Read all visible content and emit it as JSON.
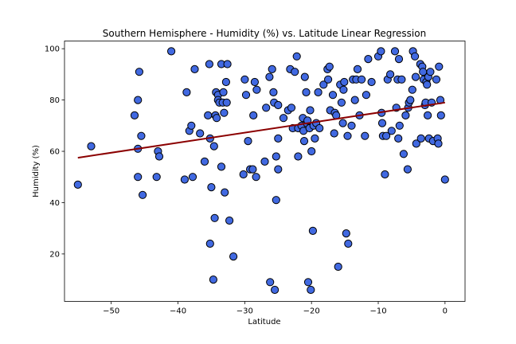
{
  "chart_data": {
    "type": "scatter",
    "title": "Southern Hemisphere - Humidity (%) vs. Latitude Linear Regression",
    "xlabel": "Latitude",
    "ylabel": "Humidity (%)",
    "xlim": [
      -57,
      3
    ],
    "ylim": [
      1.5,
      103
    ],
    "xticks": [
      -50,
      -40,
      -30,
      -20,
      -10,
      0
    ],
    "yticks": [
      20,
      40,
      60,
      80,
      100
    ],
    "xtick_labels": [
      "−50",
      "−40",
      "−30",
      "−20",
      "−10",
      "0"
    ],
    "ytick_labels": [
      "20",
      "40",
      "60",
      "80",
      "100"
    ],
    "grid": false,
    "marker_color": "#4169e1",
    "marker_edge": "#000000",
    "line_color": "#8b0000",
    "regression_line": {
      "x": [
        -55,
        0
      ],
      "y": [
        57.5,
        79
      ]
    },
    "points": [
      [
        -55,
        47
      ],
      [
        -53,
        62
      ],
      [
        -46.5,
        74
      ],
      [
        -46,
        80
      ],
      [
        -46,
        61
      ],
      [
        -46,
        50
      ],
      [
        -45.8,
        91
      ],
      [
        -45.5,
        66
      ],
      [
        -45.3,
        43
      ],
      [
        -43.2,
        50
      ],
      [
        -43,
        60
      ],
      [
        -42.8,
        58
      ],
      [
        -41,
        99
      ],
      [
        -39,
        49
      ],
      [
        -38.7,
        83
      ],
      [
        -38.3,
        68
      ],
      [
        -38,
        70
      ],
      [
        -37.8,
        50
      ],
      [
        -37.5,
        92
      ],
      [
        -36.7,
        67
      ],
      [
        -36,
        56
      ],
      [
        -35.5,
        74
      ],
      [
        -35.3,
        94
      ],
      [
        -35.2,
        65
      ],
      [
        -35.2,
        24
      ],
      [
        -35,
        46
      ],
      [
        -34.7,
        10
      ],
      [
        -34.6,
        62
      ],
      [
        -34.5,
        34
      ],
      [
        -34.4,
        74
      ],
      [
        -34.3,
        83
      ],
      [
        -34.2,
        73
      ],
      [
        -34,
        82
      ],
      [
        -34,
        80
      ],
      [
        -33.8,
        79
      ],
      [
        -33.5,
        94
      ],
      [
        -33.5,
        54
      ],
      [
        -33.3,
        79
      ],
      [
        -33.2,
        83
      ],
      [
        -33.1,
        75
      ],
      [
        -33,
        44
      ],
      [
        -32.8,
        87
      ],
      [
        -32.7,
        79
      ],
      [
        -32.6,
        94
      ],
      [
        -32.3,
        33
      ],
      [
        -31.7,
        19
      ],
      [
        -30.2,
        51
      ],
      [
        -30,
        88
      ],
      [
        -29.8,
        82
      ],
      [
        -29.5,
        64
      ],
      [
        -29.2,
        53
      ],
      [
        -28.8,
        53
      ],
      [
        -28.7,
        74
      ],
      [
        -28.5,
        87
      ],
      [
        -28.3,
        50
      ],
      [
        -28.2,
        84
      ],
      [
        -27,
        56
      ],
      [
        -26.8,
        77
      ],
      [
        -26.3,
        89
      ],
      [
        -26.2,
        9
      ],
      [
        -25.9,
        92
      ],
      [
        -25.7,
        83
      ],
      [
        -25.6,
        79
      ],
      [
        -25.5,
        6
      ],
      [
        -25.3,
        58
      ],
      [
        -25.3,
        41
      ],
      [
        -25,
        78
      ],
      [
        -25,
        53
      ],
      [
        -25,
        65
      ],
      [
        -24.2,
        73
      ],
      [
        -23.5,
        76
      ],
      [
        -23.2,
        92
      ],
      [
        -23,
        77
      ],
      [
        -22.8,
        69
      ],
      [
        -22.5,
        91
      ],
      [
        -22.2,
        97
      ],
      [
        -22,
        69
      ],
      [
        -22,
        58
      ],
      [
        -21.5,
        70
      ],
      [
        -21.3,
        73
      ],
      [
        -21.2,
        68
      ],
      [
        -21.1,
        64
      ],
      [
        -21,
        89
      ],
      [
        -20.8,
        83
      ],
      [
        -20.7,
        71
      ],
      [
        -20.6,
        72
      ],
      [
        -20.5,
        9
      ],
      [
        -20.3,
        69
      ],
      [
        -20.2,
        76
      ],
      [
        -20.1,
        6
      ],
      [
        -20,
        60
      ],
      [
        -19.8,
        29
      ],
      [
        -19.7,
        70
      ],
      [
        -19.5,
        65
      ],
      [
        -19.3,
        71
      ],
      [
        -19,
        83
      ],
      [
        -18.8,
        69
      ],
      [
        -18.2,
        86
      ],
      [
        -17.6,
        92
      ],
      [
        -17.5,
        88
      ],
      [
        -17.3,
        93
      ],
      [
        -17.2,
        76
      ],
      [
        -16.8,
        82
      ],
      [
        -16.6,
        67
      ],
      [
        -16.5,
        75
      ],
      [
        -16.3,
        74
      ],
      [
        -16,
        15
      ],
      [
        -15.7,
        86
      ],
      [
        -15.5,
        79
      ],
      [
        -15.3,
        71
      ],
      [
        -15.2,
        84
      ],
      [
        -15.1,
        87
      ],
      [
        -14.8,
        28
      ],
      [
        -14.6,
        66
      ],
      [
        -14.5,
        24
      ],
      [
        -14,
        70
      ],
      [
        -13.8,
        88
      ],
      [
        -13.5,
        80
      ],
      [
        -13.3,
        88
      ],
      [
        -13.1,
        92
      ],
      [
        -12.8,
        74
      ],
      [
        -12.5,
        88
      ],
      [
        -12,
        66
      ],
      [
        -11.8,
        82
      ],
      [
        -11.5,
        96
      ],
      [
        -11,
        87
      ],
      [
        -10,
        97
      ],
      [
        -9.6,
        99
      ],
      [
        -9.5,
        75
      ],
      [
        -9.4,
        71
      ],
      [
        -9.3,
        66
      ],
      [
        -9,
        51
      ],
      [
        -8.8,
        66
      ],
      [
        -8.6,
        88
      ],
      [
        -8.2,
        90
      ],
      [
        -8,
        68
      ],
      [
        -7.5,
        99
      ],
      [
        -7.3,
        77
      ],
      [
        -7.1,
        88
      ],
      [
        -7,
        65
      ],
      [
        -6.9,
        96
      ],
      [
        -6.8,
        70
      ],
      [
        -6.5,
        88
      ],
      [
        -6.2,
        59
      ],
      [
        -5.9,
        74
      ],
      [
        -5.6,
        53
      ],
      [
        -5.5,
        77
      ],
      [
        -5.4,
        79
      ],
      [
        -5.2,
        80
      ],
      [
        -4.9,
        84
      ],
      [
        -4.8,
        99
      ],
      [
        -4.5,
        97
      ],
      [
        -4.4,
        89
      ],
      [
        -4.3,
        63
      ],
      [
        -3.7,
        94
      ],
      [
        -3.6,
        65
      ],
      [
        -3.4,
        93
      ],
      [
        -3.3,
        91
      ],
      [
        -3.2,
        88
      ],
      [
        -3,
        78
      ],
      [
        -2.9,
        79
      ],
      [
        -2.8,
        87
      ],
      [
        -2.7,
        86
      ],
      [
        -2.6,
        74
      ],
      [
        -2.5,
        89
      ],
      [
        -2.4,
        65
      ],
      [
        -2.2,
        91
      ],
      [
        -2,
        79
      ],
      [
        -1.8,
        64
      ],
      [
        -1.3,
        88
      ],
      [
        -1.1,
        65
      ],
      [
        -1,
        63
      ],
      [
        -0.9,
        93
      ],
      [
        -0.7,
        80
      ],
      [
        -0.6,
        74
      ],
      [
        0,
        49
      ]
    ]
  }
}
